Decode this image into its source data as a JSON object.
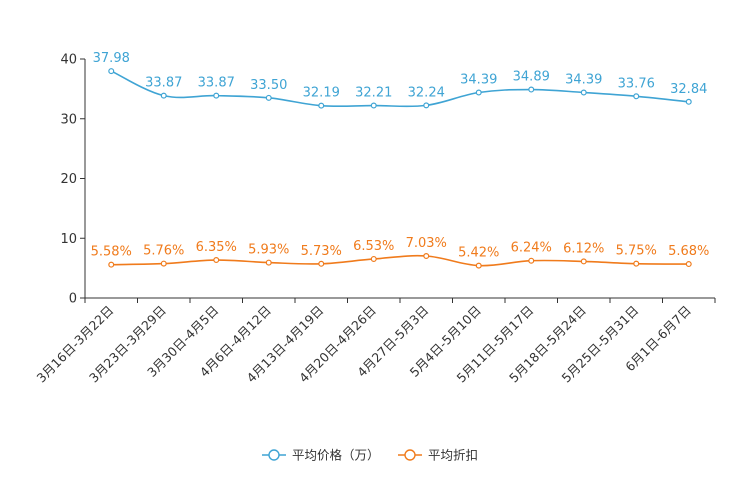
{
  "chart_data": {
    "type": "line",
    "categories": [
      "3月16日-3月22日",
      "3月23日-3月29日",
      "3月30日-4月5日",
      "4月6日-4月12日",
      "4月13日-4月19日",
      "4月20日-4月26日",
      "4月27日-5月3日",
      "5月4日-5月10日",
      "5月11日-5月17日",
      "5月18日-5月24日",
      "5月25日-5月31日",
      "6月1日-6月7日"
    ],
    "ylim": [
      0,
      40
    ],
    "yticks": [
      0,
      10,
      20,
      30,
      40
    ],
    "series": [
      {
        "name": "平均价格（万）",
        "color": "#3fa4d4",
        "values": [
          37.98,
          33.87,
          33.87,
          33.5,
          32.19,
          32.21,
          32.24,
          34.39,
          34.89,
          34.39,
          33.76,
          32.84
        ],
        "labels": [
          "37.98",
          "33.87",
          "33.87",
          "33.50",
          "32.19",
          "32.21",
          "32.24",
          "34.39",
          "34.89",
          "34.39",
          "33.76",
          "32.84"
        ]
      },
      {
        "name": "平均折扣",
        "color": "#f07b1c",
        "values": [
          5.58,
          5.76,
          6.35,
          5.93,
          5.73,
          6.53,
          7.03,
          5.42,
          6.24,
          6.12,
          5.75,
          5.68
        ],
        "labels": [
          "5.58%",
          "5.76%",
          "6.35%",
          "5.93%",
          "5.73%",
          "6.53%",
          "7.03%",
          "5.42%",
          "6.24%",
          "6.12%",
          "5.75%",
          "5.68%"
        ]
      }
    ]
  }
}
